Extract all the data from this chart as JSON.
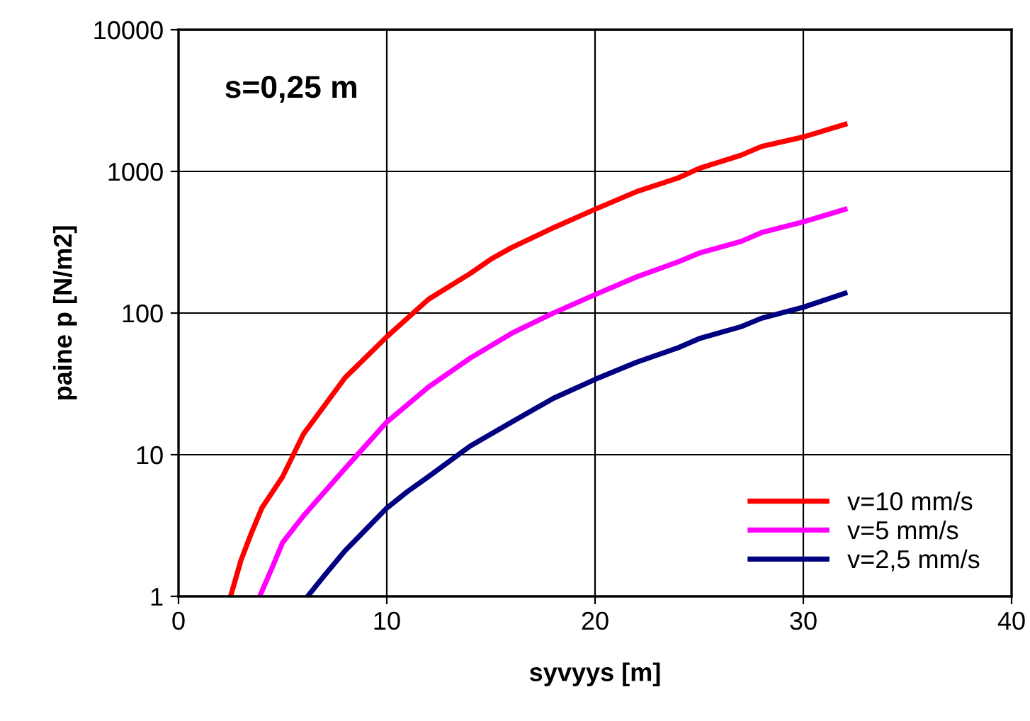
{
  "chart_data": {
    "type": "line",
    "xlabel": "syvyys [m]",
    "ylabel": "paine p [N/m2]",
    "annotations": [
      "s=0,25 m"
    ],
    "log": "y",
    "xlim": [
      0,
      40
    ],
    "xticks": [
      0,
      10,
      20,
      30,
      40
    ],
    "ylim": [
      1,
      10000
    ],
    "yticks": [
      1,
      10,
      100,
      1000,
      10000
    ],
    "grid": true,
    "legend": "bottom right",
    "marker": "none",
    "line_style": "solid",
    "series": [
      {
        "name": "v=10 mm/s",
        "color": "#ff0000",
        "x": [
          2.5,
          3,
          3.5,
          4,
          5,
          6,
          8,
          10,
          12,
          14,
          15,
          16,
          18,
          20,
          22,
          24,
          25,
          27,
          28,
          30,
          32
        ],
        "values": [
          1,
          1.8,
          2.8,
          4.2,
          7,
          14,
          35,
          68,
          125,
          190,
          240,
          290,
          400,
          540,
          720,
          900,
          1050,
          1300,
          1500,
          1750,
          2150
        ]
      },
      {
        "name": "v=5 mm/s",
        "color": "#ff00ff",
        "x": [
          3.9,
          4.5,
          5,
          6,
          8,
          10,
          12,
          14,
          16,
          18,
          20,
          22,
          24,
          25,
          27,
          28,
          30,
          32
        ],
        "values": [
          1,
          1.6,
          2.4,
          3.7,
          8,
          17,
          30,
          48,
          72,
          100,
          135,
          180,
          230,
          265,
          320,
          370,
          440,
          540
        ]
      },
      {
        "name": "v=2,5 mm/s",
        "color": "#000080",
        "x": [
          6.2,
          7,
          8,
          10,
          11,
          12,
          14,
          16,
          18,
          20,
          22,
          24,
          25,
          27,
          28,
          30,
          32
        ],
        "values": [
          1,
          1.4,
          2.1,
          4.2,
          5.5,
          7,
          11.5,
          17,
          25,
          34,
          45,
          57,
          66,
          80,
          92,
          110,
          138
        ]
      }
    ]
  }
}
